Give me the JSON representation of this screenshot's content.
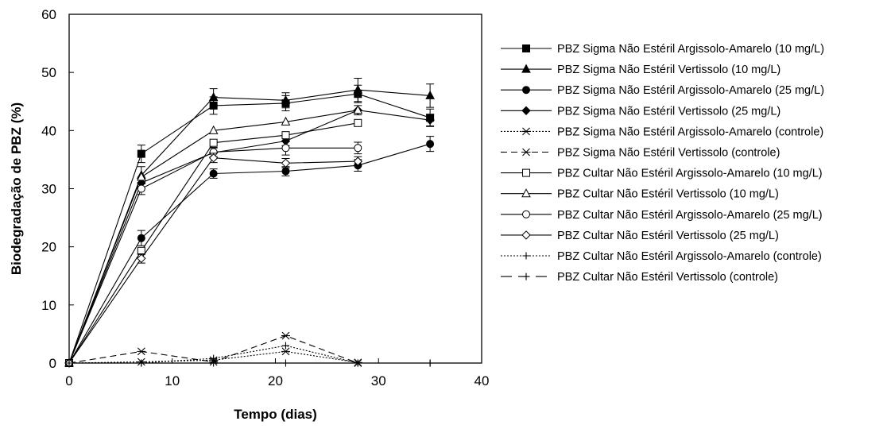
{
  "chart_data": {
    "type": "line",
    "xlabel": "Tempo (dias)",
    "ylabel": "Biodegradação de PBZ (%)",
    "xlim": [
      0,
      40
    ],
    "ylim": [
      0,
      60
    ],
    "xticks": [
      0,
      10,
      20,
      30,
      40
    ],
    "yticks": [
      0,
      10,
      20,
      30,
      40,
      50,
      60
    ],
    "grid": false,
    "legend_position": "right",
    "series": [
      {
        "name": "PBZ Sigma Não Estéril Argissolo-Amarelo (10 mg/L)",
        "marker": "square-filled",
        "dash": "solid",
        "x": [
          0,
          7,
          14,
          21,
          28,
          35
        ],
        "y": [
          0,
          36.0,
          44.3,
          44.7,
          46.3,
          42.2
        ],
        "err": [
          0,
          1.5,
          1.5,
          1.3,
          1.5,
          1.5
        ]
      },
      {
        "name": "PBZ Sigma Não Estéril Vertissolo (10 mg/L)",
        "marker": "triangle-filled",
        "dash": "solid",
        "x": [
          0,
          7,
          14,
          21,
          28,
          35
        ],
        "y": [
          0,
          32.3,
          45.7,
          45.2,
          47.0,
          46.0
        ],
        "err": [
          0,
          1.5,
          1.5,
          1.3,
          2.0,
          2.0
        ]
      },
      {
        "name": "PBZ Sigma Não Estéril Argissolo-Amarelo (25 mg/L)",
        "marker": "circle-filled",
        "dash": "solid",
        "x": [
          0,
          7,
          14,
          21,
          28,
          35
        ],
        "y": [
          0,
          21.5,
          32.6,
          33.0,
          34.0,
          37.7
        ],
        "err": [
          0,
          1.3,
          0.8,
          0.8,
          1.0,
          1.3
        ]
      },
      {
        "name": "PBZ Sigma Não Estéril Vertissolo (25 mg/L)",
        "marker": "diamond-filled",
        "dash": "solid",
        "x": [
          0,
          7,
          14,
          21,
          28,
          35
        ],
        "y": [
          0,
          31.0,
          36.2,
          38.2,
          43.5,
          41.8
        ],
        "err": [
          0,
          1.0,
          0.8,
          0.8,
          0.8,
          1.0
        ]
      },
      {
        "name": "PBZ Sigma Não Estéril Argissolo-Amarelo (controle)",
        "marker": "asterisk",
        "dash": "dotted",
        "x": [
          0,
          7,
          14,
          21,
          28
        ],
        "y": [
          0,
          0.2,
          0.5,
          2.0,
          0.1
        ],
        "err": [
          0,
          0,
          0,
          0,
          0
        ]
      },
      {
        "name": "PBZ Sigma Não Estéril Vertissolo (controle)",
        "marker": "asterisk",
        "dash": "dashed",
        "x": [
          0,
          7,
          14,
          21,
          28
        ],
        "y": [
          0,
          2.0,
          0.2,
          4.7,
          0
        ],
        "err": [
          0,
          0,
          0,
          0,
          0
        ]
      },
      {
        "name": "PBZ Cultar Não Estéril Argissolo-Amarelo (10 mg/L)",
        "marker": "square-open",
        "dash": "solid",
        "x": [
          0,
          7,
          14,
          21,
          28
        ],
        "y": [
          0,
          19.3,
          37.9,
          39.2,
          41.3
        ],
        "err": [
          0,
          0,
          0,
          0,
          0
        ]
      },
      {
        "name": "PBZ Cultar Não Estéril Vertissolo (10 mg/L)",
        "marker": "triangle-open",
        "dash": "solid",
        "x": [
          0,
          7,
          14,
          21,
          28
        ],
        "y": [
          0,
          32.0,
          40.0,
          41.5,
          43.5
        ],
        "err": [
          0,
          0,
          0,
          0,
          0
        ]
      },
      {
        "name": "PBZ Cultar Não Estéril Argissolo-Amarelo (25 mg/L)",
        "marker": "circle-open",
        "dash": "solid",
        "x": [
          0,
          7,
          14,
          21,
          28
        ],
        "y": [
          0,
          30.0,
          36.3,
          37.0,
          37.0
        ],
        "err": [
          0,
          1.0,
          0.8,
          1.2,
          1.0
        ]
      },
      {
        "name": "PBZ Cultar Não Estéril Vertissolo (25 mg/L)",
        "marker": "diamond-open",
        "dash": "solid",
        "x": [
          0,
          7,
          14,
          21,
          28
        ],
        "y": [
          0,
          18.0,
          35.3,
          34.4,
          34.7
        ],
        "err": [
          0,
          0.8,
          0.8,
          0.8,
          0.8
        ]
      },
      {
        "name": "PBZ Cultar Não Estéril Argissolo-Amarelo (controle)",
        "marker": "plus",
        "dash": "dotted",
        "x": [
          0,
          7,
          14,
          21,
          28,
          35
        ],
        "y": [
          0,
          0,
          0.8,
          3.0,
          0,
          0
        ],
        "err": [
          0,
          0,
          0,
          0,
          0,
          0
        ]
      },
      {
        "name": "PBZ Cultar Não Estéril Vertissolo (controle)",
        "marker": "plus",
        "dash": "longdash",
        "x": [
          0,
          7,
          14,
          21,
          28,
          35
        ],
        "y": [
          0,
          0,
          0,
          0,
          0,
          0
        ],
        "err": [
          0,
          0,
          0,
          0,
          0,
          0
        ]
      }
    ]
  }
}
